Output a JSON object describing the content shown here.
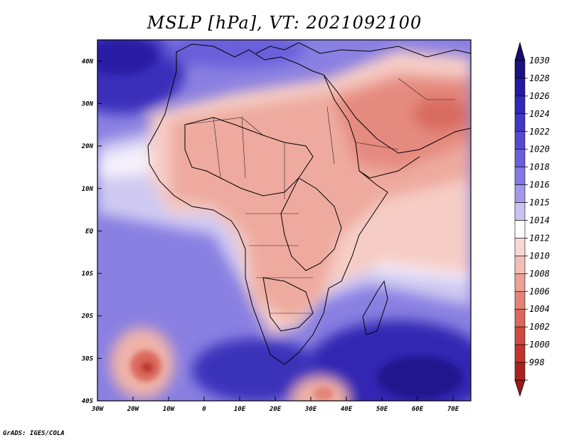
{
  "title": "MSLP [hPa], VT: 2021092100",
  "credit": "GrADS: IGES/COLA",
  "map": {
    "lon_range": [
      -30,
      75
    ],
    "lat_range": [
      -40,
      45
    ],
    "lat_ticks": [
      {
        "value": 40,
        "label": "40N"
      },
      {
        "value": 30,
        "label": "30N"
      },
      {
        "value": 20,
        "label": "20N"
      },
      {
        "value": 10,
        "label": "10N"
      },
      {
        "value": 0,
        "label": "EQ"
      },
      {
        "value": -10,
        "label": "10S"
      },
      {
        "value": -20,
        "label": "20S"
      },
      {
        "value": -30,
        "label": "30S"
      },
      {
        "value": -40,
        "label": "40S"
      }
    ],
    "lon_ticks": [
      {
        "value": -30,
        "label": "30W"
      },
      {
        "value": -20,
        "label": "20W"
      },
      {
        "value": -10,
        "label": "10W"
      },
      {
        "value": 0,
        "label": "0"
      },
      {
        "value": 10,
        "label": "10E"
      },
      {
        "value": 20,
        "label": "20E"
      },
      {
        "value": 30,
        "label": "30E"
      },
      {
        "value": 40,
        "label": "40E"
      },
      {
        "value": 50,
        "label": "50E"
      },
      {
        "value": 60,
        "label": "60E"
      },
      {
        "value": 70,
        "label": "70E"
      }
    ]
  },
  "colorbar": {
    "levels": [
      {
        "label": "1030",
        "color": "#1a1280"
      },
      {
        "label": "1028",
        "color": "#2419a0"
      },
      {
        "label": "1026",
        "color": "#3129b8"
      },
      {
        "label": "1024",
        "color": "#4136c6"
      },
      {
        "label": "1022",
        "color": "#5549d0"
      },
      {
        "label": "1020",
        "color": "#6a5fda"
      },
      {
        "label": "1018",
        "color": "#8478e2"
      },
      {
        "label": "1016",
        "color": "#a399ea"
      },
      {
        "label": "1015",
        "color": "#c9c3f2"
      },
      {
        "label": "1014",
        "color": "#ffffff"
      },
      {
        "label": "1012",
        "color": "#f9d8d3"
      },
      {
        "label": "1010",
        "color": "#f3bfb6"
      },
      {
        "label": "1008",
        "color": "#eda095"
      },
      {
        "label": "1006",
        "color": "#e58277"
      },
      {
        "label": "1004",
        "color": "#db665a"
      },
      {
        "label": "1002",
        "color": "#cf4b41"
      },
      {
        "label": "1000",
        "color": "#c0352e"
      },
      {
        "label": "998",
        "color": "#a9221e"
      }
    ],
    "top_arrow_color": "#150d70",
    "bottom_arrow_color": "#9a1a18"
  }
}
